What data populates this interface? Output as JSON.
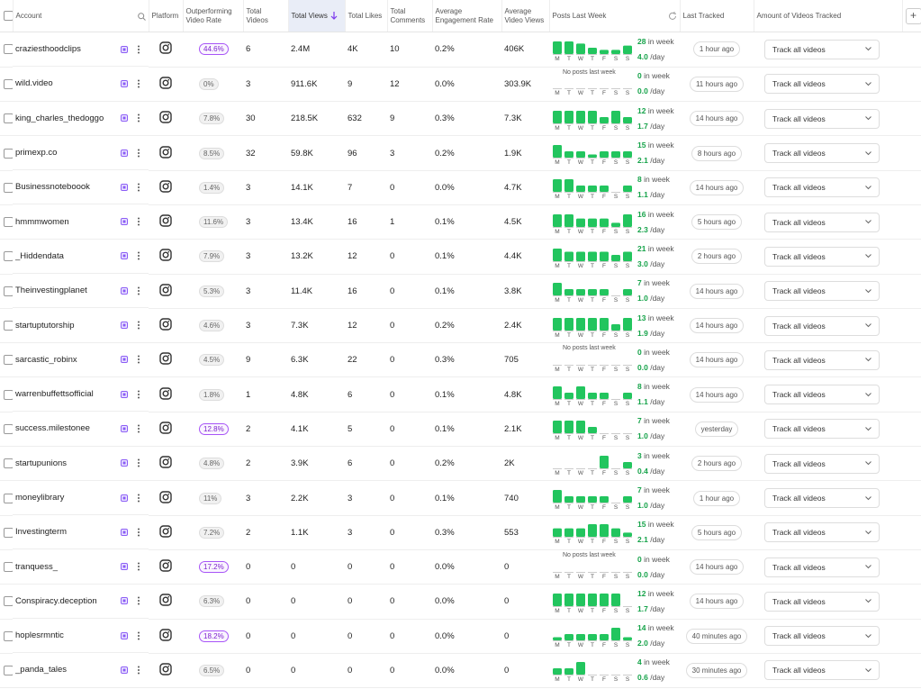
{
  "header": {
    "columns": [
      "Account",
      "Platform",
      "Outperforming Video Rate",
      "Total Videos",
      "Total Views",
      "Total Likes",
      "Total Comments",
      "Average Engagement Rate",
      "Average Video Views",
      "Posts Last Week",
      "Last Tracked",
      "Amount of Videos Tracked"
    ]
  },
  "labels": {
    "days": [
      "M",
      "T",
      "W",
      "T",
      "F",
      "S",
      "S"
    ],
    "in_week": "in week",
    "per_day": "/day"
  },
  "rows": [
    {
      "account": "craziesthoodclips",
      "outperforming": "44.6%",
      "highlight": true,
      "videos": "6",
      "views": "2.4M",
      "likes": "4K",
      "comments": "10",
      "engagement": "0.2%",
      "avg_views": "406K",
      "daily": [
        6,
        6,
        5,
        3,
        2,
        2,
        4
      ],
      "week": "28",
      "per_day": "4.0",
      "last_tracked": "1 hour ago",
      "tracking": "Track all videos"
    },
    {
      "account": "wild.video",
      "outperforming": "0%",
      "highlight": false,
      "videos": "3",
      "views": "911.6K",
      "likes": "9",
      "comments": "12",
      "engagement": "0.0%",
      "avg_views": "303.9K",
      "note": "No posts last week",
      "daily": [
        0,
        0,
        0,
        0,
        0,
        0,
        0
      ],
      "week": "0",
      "per_day": "0.0",
      "last_tracked": "11 hours ago",
      "tracking": "Track all videos"
    },
    {
      "account": "king_charles_thedoggo",
      "outperforming": "7.8%",
      "highlight": false,
      "videos": "30",
      "views": "218.5K",
      "likes": "632",
      "comments": "9",
      "engagement": "0.3%",
      "avg_views": "7.3K",
      "daily": [
        2,
        2,
        2,
        2,
        1,
        2,
        1
      ],
      "week": "12",
      "per_day": "1.7",
      "last_tracked": "14 hours ago",
      "tracking": "Track all videos"
    },
    {
      "account": "primexp.co",
      "outperforming": "8.5%",
      "highlight": false,
      "videos": "32",
      "views": "59.8K",
      "likes": "96",
      "comments": "3",
      "engagement": "0.2%",
      "avg_views": "1.9K",
      "daily": [
        4,
        2,
        2,
        1,
        2,
        2,
        2
      ],
      "week": "15",
      "per_day": "2.1",
      "last_tracked": "8 hours ago",
      "tracking": "Track all videos"
    },
    {
      "account": "Businessnoteboook",
      "outperforming": "1.4%",
      "highlight": false,
      "videos": "3",
      "views": "14.1K",
      "likes": "7",
      "comments": "0",
      "engagement": "0.0%",
      "avg_views": "4.7K",
      "daily": [
        2,
        2,
        1,
        1,
        1,
        0,
        1
      ],
      "week": "8",
      "per_day": "1.1",
      "last_tracked": "14 hours ago",
      "tracking": "Track all videos"
    },
    {
      "account": "hmmmwomen",
      "outperforming": "11.6%",
      "highlight": false,
      "videos": "3",
      "views": "13.4K",
      "likes": "16",
      "comments": "1",
      "engagement": "0.1%",
      "avg_views": "4.5K",
      "daily": [
        3,
        3,
        2,
        2,
        2,
        1,
        3
      ],
      "week": "16",
      "per_day": "2.3",
      "last_tracked": "5 hours ago",
      "tracking": "Track all videos"
    },
    {
      "account": "_Hiddendata",
      "outperforming": "7.9%",
      "highlight": false,
      "videos": "3",
      "views": "13.2K",
      "likes": "12",
      "comments": "0",
      "engagement": "0.1%",
      "avg_views": "4.4K",
      "daily": [
        4,
        3,
        3,
        3,
        3,
        2,
        3
      ],
      "week": "21",
      "per_day": "3.0",
      "last_tracked": "2 hours ago",
      "tracking": "Track all videos"
    },
    {
      "account": "Theinvestingplanet",
      "outperforming": "5.3%",
      "highlight": false,
      "videos": "3",
      "views": "11.4K",
      "likes": "16",
      "comments": "0",
      "engagement": "0.1%",
      "avg_views": "3.8K",
      "daily": [
        2,
        1,
        1,
        1,
        1,
        0,
        1
      ],
      "week": "7",
      "per_day": "1.0",
      "last_tracked": "14 hours ago",
      "tracking": "Track all videos"
    },
    {
      "account": "startuptutorship",
      "outperforming": "4.6%",
      "highlight": false,
      "videos": "3",
      "views": "7.3K",
      "likes": "12",
      "comments": "0",
      "engagement": "0.2%",
      "avg_views": "2.4K",
      "daily": [
        2,
        2,
        2,
        2,
        2,
        1,
        2
      ],
      "week": "13",
      "per_day": "1.9",
      "last_tracked": "14 hours ago",
      "tracking": "Track all videos"
    },
    {
      "account": "sarcastic_robinx",
      "outperforming": "4.5%",
      "highlight": false,
      "videos": "9",
      "views": "6.3K",
      "likes": "22",
      "comments": "0",
      "engagement": "0.3%",
      "avg_views": "705",
      "note": "No posts last week",
      "daily": [
        0,
        0,
        0,
        0,
        0,
        0,
        0
      ],
      "week": "0",
      "per_day": "0.0",
      "last_tracked": "14 hours ago",
      "tracking": "Track all videos"
    },
    {
      "account": "warrenbuffettsofficial",
      "outperforming": "1.8%",
      "highlight": false,
      "videos": "1",
      "views": "4.8K",
      "likes": "6",
      "comments": "0",
      "engagement": "0.1%",
      "avg_views": "4.8K",
      "daily": [
        2,
        1,
        2,
        1,
        1,
        0,
        1
      ],
      "week": "8",
      "per_day": "1.1",
      "last_tracked": "14 hours ago",
      "tracking": "Track all videos"
    },
    {
      "account": "success.milestonee",
      "outperforming": "12.8%",
      "highlight": true,
      "videos": "2",
      "views": "4.1K",
      "likes": "5",
      "comments": "0",
      "engagement": "0.1%",
      "avg_views": "2.1K",
      "daily": [
        2,
        2,
        2,
        1,
        0,
        0,
        0
      ],
      "week": "7",
      "per_day": "1.0",
      "last_tracked": "yesterday",
      "tracking": "Track all videos"
    },
    {
      "account": "startupunions",
      "outperforming": "4.8%",
      "highlight": false,
      "videos": "2",
      "views": "3.9K",
      "likes": "6",
      "comments": "0",
      "engagement": "0.2%",
      "avg_views": "2K",
      "daily": [
        0,
        0,
        0,
        0,
        2,
        0,
        1
      ],
      "week": "3",
      "per_day": "0.4",
      "last_tracked": "2 hours ago",
      "tracking": "Track all videos"
    },
    {
      "account": "moneylibrary",
      "outperforming": "11%",
      "highlight": false,
      "videos": "3",
      "views": "2.2K",
      "likes": "3",
      "comments": "0",
      "engagement": "0.1%",
      "avg_views": "740",
      "daily": [
        2,
        1,
        1,
        1,
        1,
        0,
        1
      ],
      "week": "7",
      "per_day": "1.0",
      "last_tracked": "1 hour ago",
      "tracking": "Track all videos"
    },
    {
      "account": "Investingterm",
      "outperforming": "7.2%",
      "highlight": false,
      "videos": "2",
      "views": "1.1K",
      "likes": "3",
      "comments": "0",
      "engagement": "0.3%",
      "avg_views": "553",
      "daily": [
        2,
        2,
        2,
        3,
        3,
        2,
        1
      ],
      "week": "15",
      "per_day": "2.1",
      "last_tracked": "5 hours ago",
      "tracking": "Track all videos"
    },
    {
      "account": "tranquess_",
      "outperforming": "17.2%",
      "highlight": true,
      "videos": "0",
      "views": "0",
      "likes": "0",
      "comments": "0",
      "engagement": "0.0%",
      "avg_views": "0",
      "note": "No posts last week",
      "daily": [
        0,
        0,
        0,
        0,
        0,
        0,
        0
      ],
      "week": "0",
      "per_day": "0.0",
      "last_tracked": "14 hours ago",
      "tracking": "Track all videos"
    },
    {
      "account": "Conspiracy.deception",
      "outperforming": "6.3%",
      "highlight": false,
      "videos": "0",
      "views": "0",
      "likes": "0",
      "comments": "0",
      "engagement": "0.0%",
      "avg_views": "0",
      "daily": [
        2,
        2,
        2,
        2,
        2,
        2,
        0
      ],
      "week": "12",
      "per_day": "1.7",
      "last_tracked": "14 hours ago",
      "tracking": "Track all videos"
    },
    {
      "account": "hoplesrmntic",
      "outperforming": "18.2%",
      "highlight": true,
      "videos": "0",
      "views": "0",
      "likes": "0",
      "comments": "0",
      "engagement": "0.0%",
      "avg_views": "0",
      "daily": [
        1,
        2,
        2,
        2,
        2,
        4,
        1
      ],
      "week": "14",
      "per_day": "2.0",
      "last_tracked": "40 minutes ago",
      "tracking": "Track all videos"
    },
    {
      "account": "_panda_tales",
      "outperforming": "6.5%",
      "highlight": false,
      "videos": "0",
      "views": "0",
      "likes": "0",
      "comments": "0",
      "engagement": "0.0%",
      "avg_views": "0",
      "daily": [
        1,
        1,
        2,
        0,
        0,
        0,
        0
      ],
      "week": "4",
      "per_day": "0.6",
      "last_tracked": "30 minutes ago",
      "tracking": "Track all videos"
    }
  ]
}
